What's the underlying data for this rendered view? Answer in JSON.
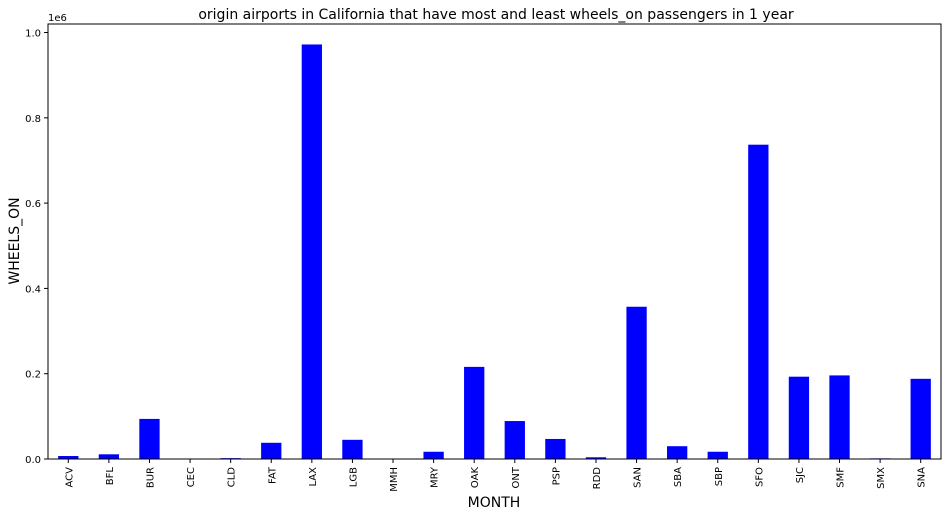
{
  "chart_data": {
    "type": "bar",
    "title": "origin airports in California that have most and least wheels_on passengers in 1 year",
    "xlabel": "MONTH",
    "ylabel": "WHEELS_ON",
    "y_offset_text": "1e6",
    "ylim": [
      0,
      1020000
    ],
    "y_ticks": [
      0,
      200000,
      400000,
      600000,
      800000,
      1000000
    ],
    "y_tick_labels": [
      "0.0",
      "0.2",
      "0.4",
      "0.6",
      "0.8",
      "1.0"
    ],
    "grid": false,
    "bar_color": "#0000ff",
    "categories": [
      "ACV",
      "BFL",
      "BUR",
      "CEC",
      "CLD",
      "FAT",
      "LAX",
      "LGB",
      "MMH",
      "MRY",
      "OAK",
      "ONT",
      "PSP",
      "RDD",
      "SAN",
      "SBA",
      "SBP",
      "SFO",
      "SJC",
      "SMF",
      "SMX",
      "SNA"
    ],
    "values": [
      7000,
      11000,
      94000,
      500,
      2000,
      38000,
      972000,
      45000,
      300,
      17000,
      216000,
      89000,
      47000,
      4000,
      357000,
      30000,
      17000,
      737000,
      193000,
      196000,
      1500,
      188000
    ]
  }
}
